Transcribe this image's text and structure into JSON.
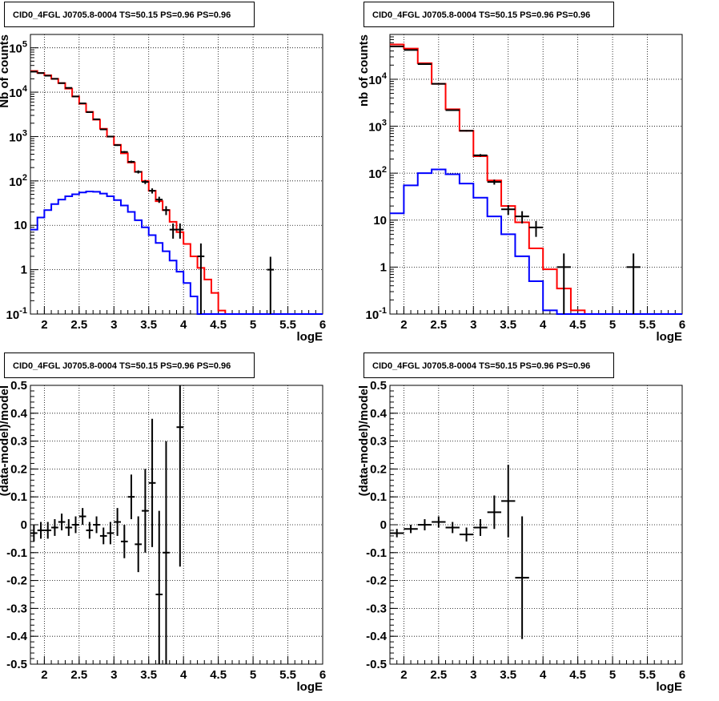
{
  "chart_data": [
    {
      "type": "line",
      "panel": "top-left",
      "title": "CID0_4FGL J0705.8-0004 TS=50.15 PS=0.96 PS=0.96",
      "xlabel": "logE",
      "ylabel": "Nb of counts",
      "xlim": [
        1.8,
        6.0
      ],
      "ylim": [
        0.1,
        200000
      ],
      "yscale": "log",
      "grid": true,
      "x_ticks": [
        "2",
        "2.5",
        "3",
        "3.5",
        "4",
        "4.5",
        "5",
        "5.5",
        "6"
      ],
      "y_ticks": [
        "10^-1",
        "1",
        "10",
        "10^2",
        "10^3",
        "10^4",
        "10^5"
      ],
      "bin_edges": [
        1.8,
        1.9,
        2.0,
        2.1,
        2.2,
        2.3,
        2.4,
        2.5,
        2.6,
        2.7,
        2.8,
        2.9,
        3.0,
        3.1,
        3.2,
        3.3,
        3.4,
        3.5,
        3.6,
        3.7,
        3.8,
        3.9,
        4.0,
        4.1,
        4.2,
        4.3,
        4.4,
        4.5,
        4.6,
        4.7,
        4.8,
        4.9,
        5.0,
        5.1,
        5.2,
        5.3,
        5.4,
        5.5,
        5.6,
        5.7,
        5.8,
        5.9,
        6.0
      ],
      "series": [
        {
          "color": "#ff0000",
          "style": "step",
          "values": [
            30000,
            27000,
            24000,
            20000,
            16000,
            12000,
            8000,
            5500,
            3600,
            2400,
            1500,
            1000,
            650,
            420,
            260,
            160,
            100,
            60,
            35,
            22,
            12,
            7,
            3.8,
            2,
            1.1,
            0.6,
            0.3,
            0.12,
            0.1,
            0.1,
            0.1,
            0.1,
            0.1,
            0.1,
            0.1,
            0.1,
            0.1,
            0.1,
            0.1,
            0.1,
            0.1,
            0.1
          ]
        },
        {
          "color": "#0000ff",
          "style": "step",
          "values": [
            8,
            15,
            22,
            30,
            38,
            45,
            50,
            55,
            58,
            57,
            52,
            45,
            37,
            28,
            20,
            13,
            9,
            6,
            4,
            2.6,
            1.6,
            0.9,
            0.5,
            0.25,
            0.1,
            0.1,
            0.1,
            0.1,
            0.1,
            0.1,
            0.1,
            0.1,
            0.1,
            0.1,
            0.1,
            0.1,
            0.1,
            0.1,
            0.1,
            0.1,
            0.1,
            0.1
          ]
        },
        {
          "color": "#000000",
          "style": "errorbar",
          "x": [
            1.85,
            1.95,
            2.05,
            2.15,
            2.25,
            2.35,
            2.45,
            2.55,
            2.65,
            2.75,
            2.85,
            2.95,
            3.05,
            3.15,
            3.25,
            3.35,
            3.45,
            3.55,
            3.65,
            3.75,
            3.85,
            3.95,
            4.25,
            5.25
          ],
          "values": [
            29000,
            27000,
            23500,
            20000,
            16000,
            12500,
            8000,
            5600,
            3550,
            2450,
            1450,
            1000,
            640,
            450,
            270,
            160,
            95,
            60,
            38,
            22,
            8,
            8,
            2,
            1
          ],
          "yerr_lo": [
            300,
            300,
            250,
            200,
            150,
            120,
            90,
            75,
            60,
            50,
            38,
            32,
            25,
            21,
            16,
            13,
            10,
            8,
            6,
            5,
            3,
            3,
            1.9,
            0.95
          ],
          "yerr_hi": [
            300,
            300,
            250,
            200,
            150,
            120,
            90,
            75,
            60,
            50,
            38,
            32,
            25,
            21,
            16,
            13,
            10,
            8,
            6,
            5,
            3,
            3,
            1.9,
            0.95
          ]
        }
      ]
    },
    {
      "type": "line",
      "panel": "top-right",
      "title": "CID0_4FGL J0705.8-0004 TS=50.15 PS=0.96 PS=0.96",
      "xlabel": "logE",
      "ylabel": "nb of counts",
      "xlim": [
        1.8,
        6.0
      ],
      "ylim": [
        0.1,
        90000
      ],
      "yscale": "log",
      "grid": true,
      "x_ticks": [
        "2",
        "2.5",
        "3",
        "3.5",
        "4",
        "4.5",
        "5",
        "5.5",
        "6"
      ],
      "y_ticks": [
        "10^-1",
        "1",
        "10",
        "10^2",
        "10^3",
        "10^4"
      ],
      "bin_edges": [
        1.8,
        2.0,
        2.2,
        2.4,
        2.6,
        2.8,
        3.0,
        3.2,
        3.4,
        3.6,
        3.8,
        4.0,
        4.2,
        4.4,
        4.6,
        4.8,
        5.0,
        5.2,
        5.4,
        5.6,
        5.8,
        6.0
      ],
      "series": [
        {
          "color": "#ff0000",
          "style": "step",
          "values": [
            55000,
            45000,
            22000,
            8000,
            2300,
            800,
            230,
            70,
            20,
            9,
            2.5,
            0.9,
            0.35,
            0.12,
            0.1,
            0.1,
            0.1,
            0.1,
            0.1,
            0.1,
            0.1
          ]
        },
        {
          "color": "#0000ff",
          "style": "step",
          "values": [
            14,
            55,
            100,
            120,
            95,
            60,
            30,
            12,
            5,
            1.7,
            0.5,
            0.12,
            0.1,
            0.1,
            0.1,
            0.1,
            0.1,
            0.1,
            0.1,
            0.1,
            0.1
          ]
        },
        {
          "color": "#000000",
          "style": "errorbar",
          "x": [
            1.9,
            2.1,
            2.3,
            2.5,
            2.7,
            2.9,
            3.1,
            3.3,
            3.5,
            3.7,
            3.9,
            4.3,
            5.3
          ],
          "values": [
            50000,
            42000,
            21000,
            8000,
            2200,
            800,
            240,
            65,
            17,
            12,
            7,
            1,
            1
          ],
          "yerr_lo": [
            220,
            200,
            145,
            90,
            47,
            28,
            15,
            8,
            4,
            3.5,
            2.6,
            0.95,
            0.95
          ],
          "yerr_hi": [
            220,
            200,
            145,
            90,
            47,
            28,
            15,
            8,
            4,
            3.5,
            2.6,
            0.95,
            0.95
          ]
        }
      ]
    },
    {
      "type": "scatter",
      "panel": "bottom-left",
      "title": "CID0_4FGL J0705.8-0004 TS=50.15 PS=0.96 PS=0.96",
      "xlabel": "logE",
      "ylabel": "(data-model)/model",
      "xlim": [
        1.8,
        6.0
      ],
      "ylim": [
        -0.5,
        0.5
      ],
      "grid": true,
      "x_ticks": [
        "2",
        "2.5",
        "3",
        "3.5",
        "4",
        "4.5",
        "5",
        "5.5",
        "6"
      ],
      "y_ticks": [
        "-0.5",
        "-0.4",
        "-0.3",
        "-0.2",
        "-0.1",
        "0",
        "0.1",
        "0.2",
        "0.3",
        "0.4",
        "0.5"
      ],
      "xhalf": 0.05,
      "x": [
        1.85,
        1.95,
        2.05,
        2.15,
        2.25,
        2.35,
        2.45,
        2.55,
        2.65,
        2.75,
        2.85,
        2.95,
        3.05,
        3.15,
        3.25,
        3.35,
        3.45,
        3.55,
        3.65,
        3.75,
        3.95
      ],
      "values": [
        -0.03,
        -0.02,
        -0.02,
        -0.01,
        0.01,
        -0.01,
        0.0,
        0.03,
        -0.02,
        0.0,
        -0.04,
        -0.03,
        0.01,
        -0.06,
        0.1,
        -0.07,
        0.05,
        0.15,
        -0.25,
        -0.1,
        0.35
      ],
      "yerr": [
        0.03,
        0.03,
        0.03,
        0.03,
        0.03,
        0.03,
        0.03,
        0.03,
        0.03,
        0.03,
        0.03,
        0.04,
        0.05,
        0.06,
        0.08,
        0.1,
        0.15,
        0.23,
        0.3,
        0.4,
        0.5
      ]
    },
    {
      "type": "scatter",
      "panel": "bottom-right",
      "title": "CID0_4FGL J0705.8-0004 TS=50.15 PS=0.96 PS=0.96",
      "xlabel": "logE",
      "ylabel": "(data-model)/model",
      "xlim": [
        1.8,
        6.0
      ],
      "ylim": [
        -0.5,
        0.5
      ],
      "grid": true,
      "x_ticks": [
        "2",
        "2.5",
        "3",
        "3.5",
        "4",
        "4.5",
        "5",
        "5.5",
        "6"
      ],
      "y_ticks": [
        "-0.5",
        "-0.4",
        "-0.3",
        "-0.2",
        "-0.1",
        "0",
        "0.1",
        "0.2",
        "0.3",
        "0.4",
        "0.5"
      ],
      "xhalf": 0.1,
      "x": [
        1.9,
        2.1,
        2.3,
        2.5,
        2.7,
        2.9,
        3.1,
        3.3,
        3.5,
        3.7
      ],
      "values": [
        -0.03,
        -0.015,
        0.0,
        0.01,
        -0.01,
        -0.035,
        -0.01,
        0.045,
        0.085,
        -0.19
      ],
      "yerr": [
        0.015,
        0.015,
        0.02,
        0.02,
        0.02,
        0.025,
        0.03,
        0.06,
        0.13,
        0.22
      ]
    }
  ]
}
